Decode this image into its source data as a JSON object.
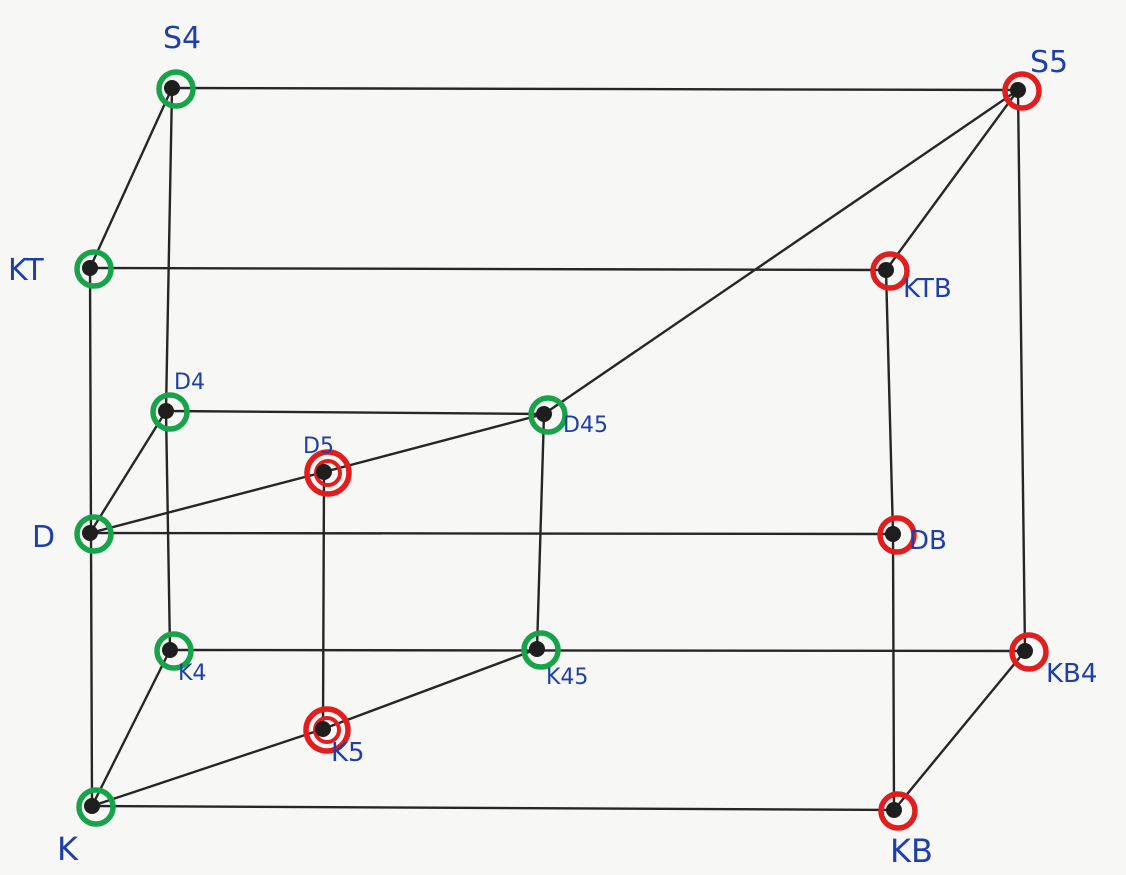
{
  "colors": {
    "ink": "#262626",
    "green_ring": "#16a34a",
    "red_ring": "#e11d1d",
    "label_blue": "#1f3fa8"
  },
  "nodes": [
    {
      "id": "S4",
      "label": "S4",
      "ring": "green"
    },
    {
      "id": "S5",
      "label": "S5",
      "ring": "red"
    },
    {
      "id": "KT",
      "label": "KT",
      "ring": "green"
    },
    {
      "id": "KTB",
      "label": "KTB",
      "ring": "red"
    },
    {
      "id": "D4",
      "label": "D4",
      "ring": "green"
    },
    {
      "id": "D45",
      "label": "D45",
      "ring": "green"
    },
    {
      "id": "D5",
      "label": "D5",
      "ring": "red-double"
    },
    {
      "id": "D",
      "label": "D",
      "ring": "green"
    },
    {
      "id": "DB",
      "label": "DB",
      "ring": "red"
    },
    {
      "id": "K4",
      "label": "K4",
      "ring": "green"
    },
    {
      "id": "K45",
      "label": "K45",
      "ring": "green"
    },
    {
      "id": "KB4",
      "label": "KB4",
      "ring": "red"
    },
    {
      "id": "K5",
      "label": "K5",
      "ring": "red-double"
    },
    {
      "id": "K",
      "label": "K",
      "ring": "green"
    },
    {
      "id": "KB",
      "label": "KB",
      "ring": "red"
    }
  ],
  "edges": [
    [
      "S4",
      "S5"
    ],
    [
      "S4",
      "KT"
    ],
    [
      "S4",
      "D4"
    ],
    [
      "S5",
      "KTB"
    ],
    [
      "S5",
      "D45"
    ],
    [
      "S5",
      "KB4"
    ],
    [
      "KT",
      "KTB"
    ],
    [
      "KT",
      "K"
    ],
    [
      "KTB",
      "DB"
    ],
    [
      "D4",
      "D45"
    ],
    [
      "D4",
      "D"
    ],
    [
      "D4",
      "K4"
    ],
    [
      "D",
      "D5"
    ],
    [
      "D5",
      "D45"
    ],
    [
      "D",
      "DB"
    ],
    [
      "D45",
      "K45"
    ],
    [
      "D5",
      "K5"
    ],
    [
      "DB",
      "KB"
    ],
    [
      "K4",
      "KB4"
    ],
    [
      "K4",
      "K"
    ],
    [
      "K",
      "K5"
    ],
    [
      "K5",
      "K45"
    ],
    [
      "K",
      "KB"
    ],
    [
      "KB",
      "KB4"
    ]
  ]
}
